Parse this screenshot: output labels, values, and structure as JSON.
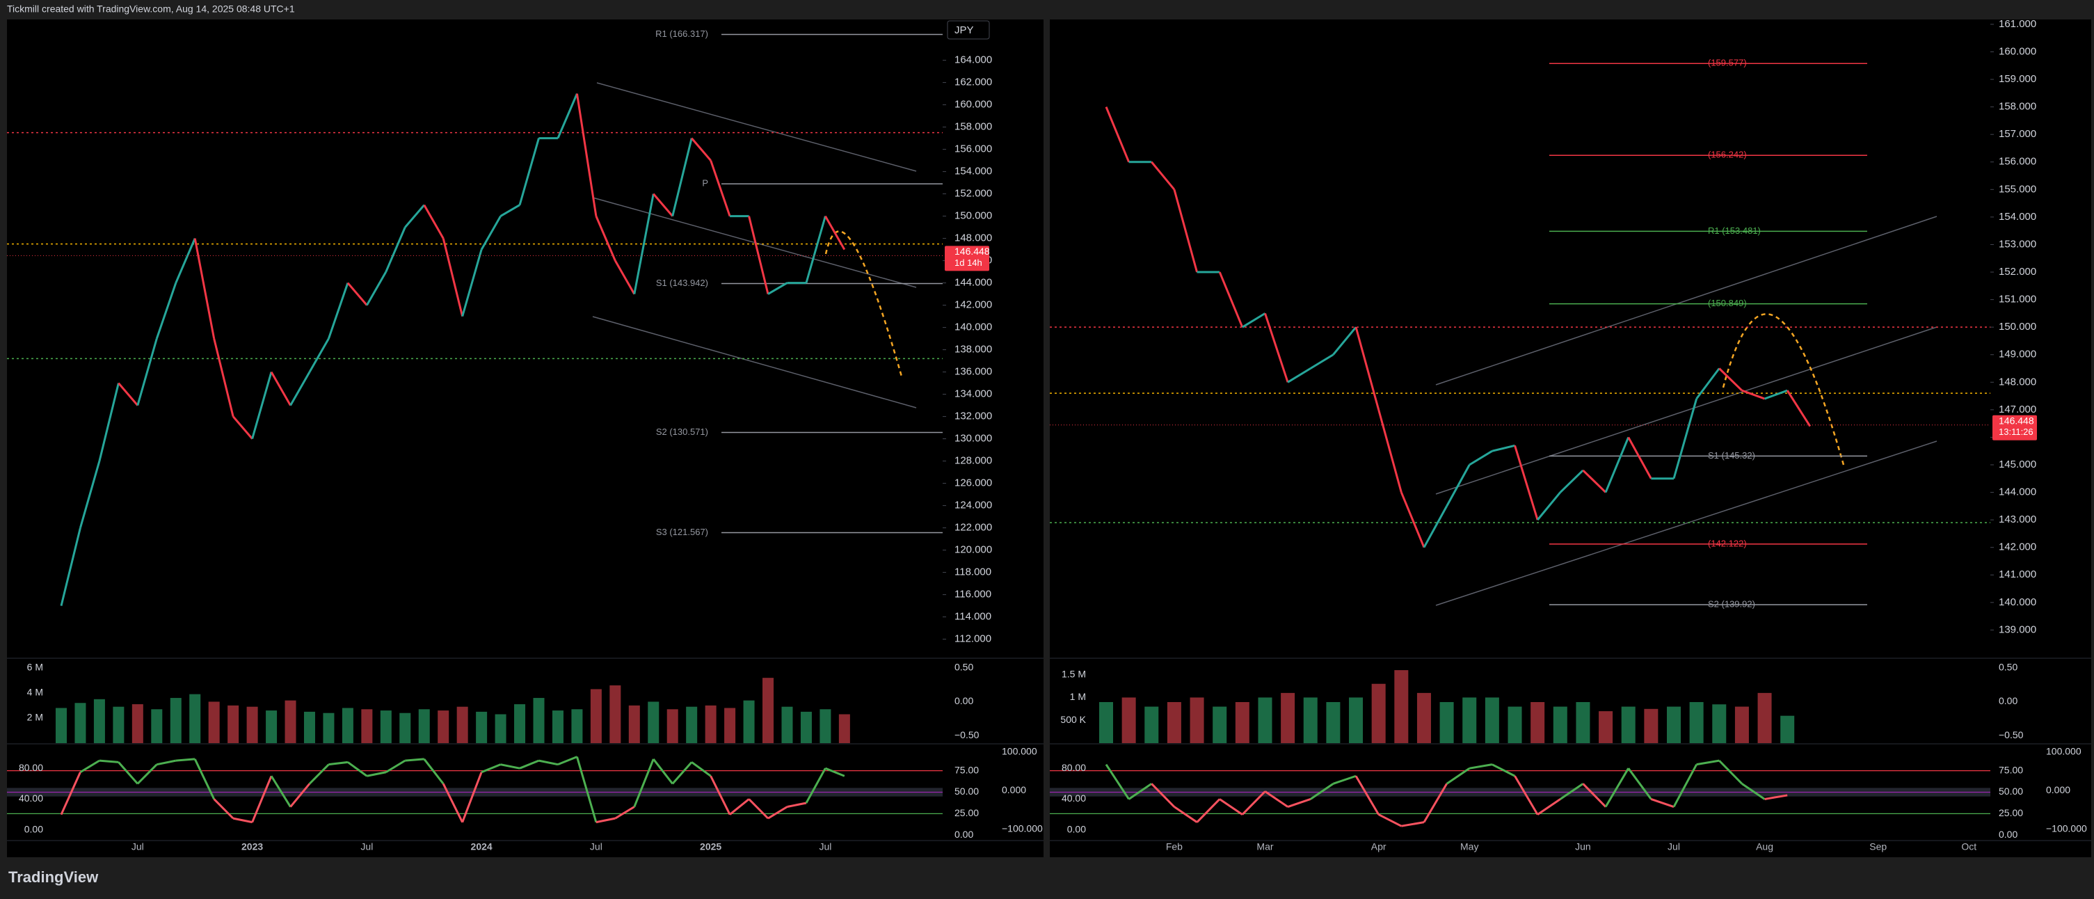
{
  "header": {
    "title": "Tickmill created with TradingView.com, Aug 14, 2025 08:48 UTC+1"
  },
  "footer": {
    "brand": "TradingView"
  },
  "chart_data": [
    {
      "type": "line",
      "currency": "JPY",
      "categories": [
        null,
        null,
        null,
        null,
        "Jul",
        null,
        null,
        null,
        null,
        null,
        "2023",
        null,
        null,
        null,
        null,
        null,
        "Jul",
        null,
        null,
        null,
        null,
        null,
        "2024",
        null,
        null,
        null,
        null,
        null,
        "Jul",
        null,
        null,
        null,
        null,
        null,
        "2025",
        null,
        null,
        null,
        null,
        null,
        "Jul",
        null
      ],
      "values": [
        115,
        122,
        128,
        135,
        133,
        139,
        144,
        148,
        139,
        132,
        130,
        136,
        133,
        136,
        139,
        144,
        142,
        145,
        149,
        151,
        148,
        141,
        147,
        150,
        151,
        157,
        157,
        161,
        150,
        146,
        143,
        152,
        150,
        157,
        155,
        150,
        150,
        143,
        144,
        144,
        150,
        147
      ],
      "up_color": "#26a69a",
      "down_color": "#f23645",
      "ylim": [
        110.6,
        167.6
      ],
      "yticks": [
        {
          "value": 112,
          "label": "112.000"
        },
        {
          "value": 114,
          "label": "114.000"
        },
        {
          "value": 116,
          "label": "116.000"
        },
        {
          "value": 118,
          "label": "118.000"
        },
        {
          "value": 120,
          "label": "120.000"
        },
        {
          "value": 122,
          "label": "122.000"
        },
        {
          "value": 124,
          "label": "124.000"
        },
        {
          "value": 126,
          "label": "126.000"
        },
        {
          "value": 128,
          "label": "128.000"
        },
        {
          "value": 130,
          "label": "130.000"
        },
        {
          "value": 132,
          "label": "132.000"
        },
        {
          "value": 134,
          "label": "134.000"
        },
        {
          "value": 136,
          "label": "136.000"
        },
        {
          "value": 138,
          "label": "138.000"
        },
        {
          "value": 140,
          "label": "140.000"
        },
        {
          "value": 142,
          "label": "142.000"
        },
        {
          "value": 144,
          "label": "144.000"
        },
        {
          "value": 146,
          "label": "146.000"
        },
        {
          "value": 148,
          "label": "148.000"
        },
        {
          "value": 150,
          "label": "150.000"
        },
        {
          "value": 152,
          "label": "152.000"
        },
        {
          "value": 154,
          "label": "154.000"
        },
        {
          "value": 156,
          "label": "156.000"
        },
        {
          "value": 158,
          "label": "158.000"
        },
        {
          "value": 160,
          "label": "160.000"
        },
        {
          "value": 162,
          "label": "162.000"
        },
        {
          "value": 164,
          "label": "164.000"
        }
      ],
      "price_tag": {
        "value": 146.448,
        "label": "146.448",
        "timer": "1d 14h"
      },
      "pivots": [
        {
          "label": "R1 (166.317)",
          "value": 166.317,
          "color": "#9598a1"
        },
        {
          "label": "P",
          "value": 152.9,
          "color": "#9598a1"
        },
        {
          "label": "S1 (143.942)",
          "value": 143.942,
          "color": "#9598a1"
        },
        {
          "label": "S2 (130.571)",
          "value": 130.571,
          "color": "#9598a1"
        },
        {
          "label": "S3 (121.567)",
          "value": 121.567,
          "color": "#9598a1"
        }
      ],
      "levels": [
        {
          "value": 157.5,
          "color": "#f23645"
        },
        {
          "value": 147.5,
          "color": "#f5b400"
        },
        {
          "value": 137.2,
          "color": "#4caf50"
        }
      ],
      "volume": {
        "values": [
          2800000,
          3200000,
          3500000,
          2900000,
          3100000,
          2700000,
          3600000,
          3900000,
          3300000,
          3000000,
          2900000,
          2600000,
          3400000,
          2500000,
          2400000,
          2800000,
          2700000,
          2600000,
          2400000,
          2700000,
          2600000,
          2900000,
          2500000,
          2300000,
          3100000,
          3600000,
          2600000,
          2700000,
          4300000,
          4600000,
          3000000,
          3300000,
          2700000,
          2900000,
          3000000,
          2800000,
          3400000,
          5200000,
          2900000,
          2500000,
          2700000,
          2300000
        ],
        "ylim": [
          0,
          6650000
        ],
        "yticks": [
          {
            "value": 2000000,
            "label": "2 M"
          },
          {
            "value": 4000000,
            "label": "4 M"
          },
          {
            "value": 6000000,
            "label": "6 M"
          }
        ],
        "y2lim": [
          -0.61,
          0.62
        ],
        "y2ticks": [
          {
            "value": 0.5,
            "label": "0.50"
          },
          {
            "value": 0,
            "label": "0.00"
          },
          {
            "value": -0.5,
            "label": "−0.50"
          }
        ]
      },
      "oscillator": {
        "values": [
          20,
          75,
          90,
          88,
          60,
          85,
          90,
          92,
          40,
          15,
          10,
          70,
          30,
          60,
          85,
          88,
          70,
          75,
          90,
          92,
          60,
          10,
          75,
          85,
          80,
          90,
          85,
          95,
          10,
          15,
          30,
          92,
          60,
          88,
          70,
          20,
          40,
          15,
          30,
          35,
          80,
          70
        ],
        "ylim": [
          -12,
          110
        ],
        "yticks": [
          {
            "value": 80,
            "label": "80.00"
          },
          {
            "value": 40,
            "label": "40.00"
          },
          {
            "value": 0,
            "label": "0.00"
          }
        ],
        "y2lim": [
          -4.7,
          104.7
        ],
        "y2ticks": [
          {
            "value": 75,
            "label": "75.00"
          },
          {
            "value": 50,
            "label": "50.00"
          },
          {
            "value": 25,
            "label": "25.00"
          },
          {
            "value": 0,
            "label": "0.00"
          }
        ],
        "y3lim": [
          -126,
          117.5
        ],
        "y3ticks": [
          {
            "value": 100,
            "label": "100.000"
          },
          {
            "value": 0,
            "label": "0.000"
          },
          {
            "value": -100,
            "label": "−100.000"
          }
        ],
        "bands": [
          {
            "value": 75,
            "color": "#f23645"
          },
          {
            "value": 50,
            "color": "#9c27b0"
          },
          {
            "value": 25,
            "color": "#4caf50"
          }
        ]
      }
    },
    {
      "type": "line",
      "categories": [
        null,
        null,
        null,
        "Feb",
        null,
        null,
        null,
        "Mar",
        null,
        null,
        null,
        null,
        "Apr",
        null,
        null,
        null,
        "May",
        null,
        null,
        null,
        null,
        "Jun",
        null,
        null,
        null,
        "Jul",
        null,
        null,
        null,
        "Aug",
        null,
        null,
        null,
        null,
        "Sep",
        null,
        null,
        null,
        "Oct"
      ],
      "values": [
        158,
        156,
        156,
        155,
        152,
        152,
        150,
        150.5,
        148,
        148.5,
        149,
        150,
        147,
        144,
        142,
        143.5,
        145,
        145.5,
        145.7,
        143,
        144,
        144.8,
        144,
        146,
        144.5,
        144.5,
        147.4,
        148.5,
        147.7,
        147.4,
        147.7,
        146.4,
        null,
        null,
        null,
        null,
        null,
        null,
        null
      ],
      "up_color": "#26a69a",
      "down_color": "#f23645",
      "ylim": [
        138.1,
        161.15
      ],
      "yticks": [
        {
          "value": 139,
          "label": "139.000"
        },
        {
          "value": 140,
          "label": "140.000"
        },
        {
          "value": 141,
          "label": "141.000"
        },
        {
          "value": 142,
          "label": "142.000"
        },
        {
          "value": 143,
          "label": "143.000"
        },
        {
          "value": 144,
          "label": "144.000"
        },
        {
          "value": 145,
          "label": "145.000"
        },
        {
          "value": 146,
          "label": "146.000"
        },
        {
          "value": 147,
          "label": "147.000"
        },
        {
          "value": 148,
          "label": "148.000"
        },
        {
          "value": 149,
          "label": "149.000"
        },
        {
          "value": 150,
          "label": "150.000"
        },
        {
          "value": 151,
          "label": "151.000"
        },
        {
          "value": 152,
          "label": "152.000"
        },
        {
          "value": 153,
          "label": "153.000"
        },
        {
          "value": 154,
          "label": "154.000"
        },
        {
          "value": 155,
          "label": "155.000"
        },
        {
          "value": 156,
          "label": "156.000"
        },
        {
          "value": 157,
          "label": "157.000"
        },
        {
          "value": 158,
          "label": "158.000"
        },
        {
          "value": 159,
          "label": "159.000"
        },
        {
          "value": 160,
          "label": "160.000"
        },
        {
          "value": 161,
          "label": "161.000"
        }
      ],
      "price_tag": {
        "value": 146.448,
        "label": "146.448",
        "timer": "13:11:26"
      },
      "pivots": [
        {
          "label": "(159.577)",
          "value": 159.577,
          "color": "#f23645"
        },
        {
          "label": "(156.242)",
          "value": 156.242,
          "color": "#f23645"
        },
        {
          "label": "R1 (153.481)",
          "value": 153.481,
          "color": "#4caf50"
        },
        {
          "label": "(150.849)",
          "value": 150.849,
          "color": "#4caf50"
        },
        {
          "label": "S1 (145.32)",
          "value": 145.32,
          "color": "#9598a1"
        },
        {
          "label": "(142.122)",
          "value": 142.122,
          "color": "#f23645"
        },
        {
          "label": "S2 (139.92)",
          "value": 139.92,
          "color": "#9598a1"
        }
      ],
      "levels": [
        {
          "value": 150,
          "color": "#f23645"
        },
        {
          "value": 147.6,
          "color": "#f5b400"
        },
        {
          "value": 142.9,
          "color": "#4caf50"
        }
      ],
      "volume": {
        "values": [
          900000,
          1000000,
          800000,
          900000,
          1000000,
          800000,
          900000,
          1000000,
          1100000,
          1000000,
          900000,
          1000000,
          1300000,
          1600000,
          1100000,
          900000,
          1000000,
          1000000,
          800000,
          900000,
          800000,
          900000,
          700000,
          800000,
          750000,
          800000,
          900000,
          850000,
          800000,
          1100000,
          600000
        ],
        "ylim": [
          0,
          1830000
        ],
        "yticks": [
          {
            "value": 500000,
            "label": "500 K"
          },
          {
            "value": 1000000,
            "label": "1 M"
          },
          {
            "value": 1500000,
            "label": "1.5 M"
          }
        ],
        "y2lim": [
          -0.61,
          0.62
        ],
        "y2ticks": [
          {
            "value": 0.5,
            "label": "0.50"
          },
          {
            "value": 0,
            "label": "0.00"
          },
          {
            "value": -0.5,
            "label": "−0.50"
          }
        ]
      },
      "oscillator": {
        "values": [
          85,
          40,
          60,
          30,
          10,
          40,
          20,
          50,
          30,
          40,
          60,
          70,
          20,
          5,
          10,
          60,
          80,
          85,
          70,
          20,
          40,
          60,
          30,
          80,
          40,
          30,
          85,
          90,
          60,
          40,
          45
        ],
        "ylim": [
          -12,
          110
        ],
        "yticks": [
          {
            "value": 80,
            "label": "80.00"
          },
          {
            "value": 40,
            "label": "40.00"
          },
          {
            "value": 0,
            "label": "0.00"
          }
        ],
        "y2lim": [
          -4.7,
          104.7
        ],
        "y2ticks": [
          {
            "value": 75,
            "label": "75.00"
          },
          {
            "value": 50,
            "label": "50.00"
          },
          {
            "value": 25,
            "label": "25.00"
          },
          {
            "value": 0,
            "label": "0.00"
          }
        ],
        "y3lim": [
          -126,
          117.5
        ],
        "y3ticks": [
          {
            "value": 100,
            "label": "100.000"
          },
          {
            "value": 0,
            "label": "0.000"
          },
          {
            "value": -100,
            "label": "−100.000"
          }
        ],
        "bands": [
          {
            "value": 75,
            "color": "#f23645"
          },
          {
            "value": 50,
            "color": "#9c27b0"
          },
          {
            "value": 25,
            "color": "#4caf50"
          }
        ]
      }
    }
  ]
}
